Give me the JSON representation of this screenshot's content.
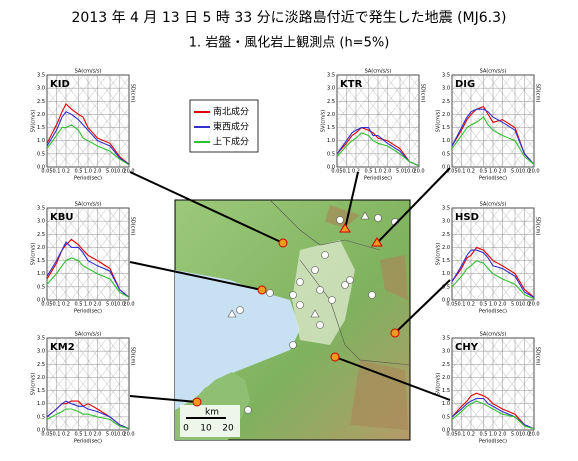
{
  "title": "2013 年 4 月 13 日 5 時 33 分に淡路島付近で発生した地震 (MJ6.3)",
  "subtitle": "1.  岩盤・風化岩上観測点 (h=5%)",
  "map": {
    "scale_unit": "km",
    "scale_labels": [
      "0",
      "10",
      "20"
    ]
  },
  "chart_data": [
    {
      "type": "line",
      "title": "KID",
      "xlabel": "Period(sec)",
      "ylabel": "SV(cm/s)",
      "top_label": "SA(cm/s/s)",
      "right_label": "SD(cm)",
      "log_x": true,
      "xlim": [
        0.05,
        20
      ],
      "xticks": [
        0.05,
        0.1,
        0.2,
        0.5,
        {
          "value": 1,
          "label": "1.0"
        },
        {
          "value": 2,
          "label": "2.0"
        },
        {
          "value": 5,
          "label": "5.0"
        },
        {
          "value": 10,
          "label": "10.0"
        },
        {
          "value": 20,
          "label": "20.0"
        }
      ],
      "ylim": [
        0,
        3.5
      ],
      "yticks": [
        {
          "value": 0,
          "label": "0.0"
        },
        0.5,
        {
          "value": 1,
          "label": "1.0"
        },
        1.5,
        {
          "value": 2,
          "label": "2.0"
        },
        2.5,
        {
          "value": 3,
          "label": "3.0"
        },
        3.5
      ],
      "x": [
        0.05,
        0.1,
        0.15,
        0.2,
        0.3,
        0.5,
        0.7,
        1,
        2,
        5,
        10,
        20
      ],
      "series": [
        {
          "name": "南北成分",
          "color": "#e00000",
          "values": [
            0.9,
            1.6,
            2.1,
            2.4,
            2.2,
            2.0,
            1.9,
            1.5,
            1.1,
            0.9,
            0.4,
            0.1
          ]
        },
        {
          "name": "東西成分",
          "color": "#3030d0",
          "values": [
            0.8,
            1.4,
            1.9,
            2.1,
            2.0,
            1.8,
            1.6,
            1.4,
            1.0,
            0.8,
            0.35,
            0.1
          ]
        },
        {
          "name": "上下成分",
          "color": "#30c030",
          "values": [
            0.7,
            1.2,
            1.5,
            1.5,
            1.6,
            1.4,
            1.1,
            1.0,
            0.8,
            0.6,
            0.3,
            0.08
          ]
        }
      ]
    },
    {
      "type": "line",
      "title": "KTR",
      "xlabel": "Period(sec)",
      "ylabel": "SV(cm/s)",
      "top_label": "SA(cm/s/s)",
      "right_label": "SD(cm)",
      "log_x": true,
      "xlim": [
        0.05,
        20
      ],
      "xticks": [
        0.05,
        0.1,
        0.2,
        0.5,
        {
          "value": 1,
          "label": "1.0"
        },
        {
          "value": 2,
          "label": "2.0"
        },
        {
          "value": 5,
          "label": "5.0"
        },
        {
          "value": 10,
          "label": "10.0"
        },
        {
          "value": 20,
          "label": "20.0"
        }
      ],
      "ylim": [
        0,
        3.5
      ],
      "yticks": [
        {
          "value": 0,
          "label": "0.0"
        },
        0.5,
        {
          "value": 1,
          "label": "1.0"
        },
        1.5,
        {
          "value": 2,
          "label": "2.0"
        },
        2.5,
        {
          "value": 3,
          "label": "3.0"
        },
        3.5
      ],
      "x": [
        0.05,
        0.1,
        0.15,
        0.2,
        0.3,
        0.5,
        0.7,
        1,
        2,
        5,
        10,
        20
      ],
      "series": [
        {
          "color": "#e00000",
          "values": [
            0.5,
            0.9,
            1.2,
            1.3,
            1.5,
            1.4,
            1.3,
            1.1,
            1.0,
            0.7,
            0.2,
            0.05
          ]
        },
        {
          "color": "#3030d0",
          "values": [
            0.5,
            1.0,
            1.3,
            1.4,
            1.5,
            1.5,
            1.2,
            1.2,
            0.9,
            0.6,
            0.2,
            0.05
          ]
        },
        {
          "color": "#30c030",
          "values": [
            0.4,
            0.8,
            1.0,
            1.1,
            1.3,
            1.2,
            1.0,
            0.9,
            0.8,
            0.5,
            0.2,
            0.05
          ]
        }
      ]
    },
    {
      "type": "line",
      "title": "DIG",
      "xlabel": "Period(sec)",
      "ylabel": "SV(cm/s)",
      "top_label": "SA(cm/s/s)",
      "right_label": "SD(cm)",
      "log_x": true,
      "xlim": [
        0.05,
        20
      ],
      "xticks": [
        0.05,
        0.1,
        0.2,
        0.5,
        {
          "value": 1,
          "label": "1.0"
        },
        {
          "value": 2,
          "label": "2.0"
        },
        {
          "value": 5,
          "label": "5.0"
        },
        {
          "value": 10,
          "label": "10.0"
        },
        {
          "value": 20,
          "label": "20.0"
        }
      ],
      "ylim": [
        0,
        3.5
      ],
      "yticks": [
        {
          "value": 0,
          "label": "0.0"
        },
        0.5,
        {
          "value": 1,
          "label": "1.0"
        },
        1.5,
        {
          "value": 2,
          "label": "2.0"
        },
        2.5,
        {
          "value": 3,
          "label": "3.0"
        },
        3.5
      ],
      "x": [
        0.05,
        0.1,
        0.15,
        0.2,
        0.3,
        0.5,
        0.7,
        1,
        2,
        5,
        10,
        20
      ],
      "series": [
        {
          "color": "#e00000",
          "values": [
            0.8,
            1.4,
            1.8,
            2.0,
            2.2,
            2.3,
            2.0,
            1.7,
            1.8,
            1.5,
            0.5,
            0.1
          ]
        },
        {
          "color": "#3030d0",
          "values": [
            0.8,
            1.5,
            1.9,
            2.1,
            2.2,
            2.2,
            2.1,
            1.9,
            1.7,
            1.4,
            0.5,
            0.1
          ]
        },
        {
          "color": "#30c030",
          "values": [
            0.7,
            1.2,
            1.5,
            1.6,
            1.7,
            1.9,
            1.6,
            1.4,
            1.2,
            1.0,
            0.4,
            0.1
          ]
        }
      ]
    },
    {
      "type": "line",
      "title": "KBU",
      "xlabel": "Period(sec)",
      "ylabel": "SV(cm/s)",
      "top_label": "SA(cm/s/s)",
      "right_label": "SD(cm)",
      "log_x": true,
      "xlim": [
        0.05,
        20
      ],
      "xticks": [
        0.05,
        0.1,
        0.2,
        0.5,
        {
          "value": 1,
          "label": "1.0"
        },
        {
          "value": 2,
          "label": "2.0"
        },
        {
          "value": 5,
          "label": "5.0"
        },
        {
          "value": 10,
          "label": "10.0"
        },
        {
          "value": 20,
          "label": "20.0"
        }
      ],
      "ylim": [
        0,
        3.5
      ],
      "yticks": [
        {
          "value": 0,
          "label": "0.0"
        },
        0.5,
        {
          "value": 1,
          "label": "1.0"
        },
        1.5,
        {
          "value": 2,
          "label": "2.0"
        },
        2.5,
        {
          "value": 3,
          "label": "3.0"
        },
        3.5
      ],
      "x": [
        0.05,
        0.1,
        0.15,
        0.2,
        0.3,
        0.5,
        0.7,
        1,
        2,
        5,
        10,
        20
      ],
      "series": [
        {
          "color": "#e00000",
          "values": [
            0.8,
            1.4,
            1.9,
            2.1,
            2.3,
            2.1,
            1.9,
            1.7,
            1.5,
            1.2,
            0.4,
            0.1
          ]
        },
        {
          "color": "#3030d0",
          "values": [
            0.9,
            1.5,
            1.9,
            2.2,
            2.0,
            2.0,
            1.8,
            1.5,
            1.3,
            1.1,
            0.4,
            0.1
          ]
        },
        {
          "color": "#30c030",
          "values": [
            0.6,
            1.0,
            1.3,
            1.5,
            1.6,
            1.5,
            1.3,
            1.2,
            1.0,
            0.8,
            0.3,
            0.1
          ]
        }
      ]
    },
    {
      "type": "line",
      "title": "HSD",
      "xlabel": "Period(sec)",
      "ylabel": "SV(cm/s)",
      "top_label": "SA(cm/s/s)",
      "right_label": "SD(cm)",
      "log_x": true,
      "xlim": [
        0.05,
        20
      ],
      "xticks": [
        0.05,
        0.1,
        0.2,
        0.5,
        {
          "value": 1,
          "label": "1.0"
        },
        {
          "value": 2,
          "label": "2.0"
        },
        {
          "value": 5,
          "label": "5.0"
        },
        {
          "value": 10,
          "label": "10.0"
        },
        {
          "value": 20,
          "label": "20.0"
        }
      ],
      "ylim": [
        0,
        3.5
      ],
      "yticks": [
        {
          "value": 0,
          "label": "0.0"
        },
        0.5,
        {
          "value": 1,
          "label": "1.0"
        },
        1.5,
        {
          "value": 2,
          "label": "2.0"
        },
        2.5,
        {
          "value": 3,
          "label": "3.0"
        },
        3.5
      ],
      "x": [
        0.05,
        0.1,
        0.15,
        0.2,
        0.3,
        0.5,
        0.7,
        1,
        2,
        5,
        10,
        20
      ],
      "series": [
        {
          "color": "#e00000",
          "values": [
            0.7,
            1.2,
            1.6,
            1.7,
            2.0,
            1.9,
            1.7,
            1.5,
            1.3,
            1.0,
            0.4,
            0.1
          ]
        },
        {
          "color": "#3030d0",
          "values": [
            0.7,
            1.3,
            1.7,
            1.9,
            1.9,
            1.8,
            1.6,
            1.3,
            1.2,
            0.9,
            0.3,
            0.1
          ]
        },
        {
          "color": "#30c030",
          "values": [
            0.5,
            0.9,
            1.2,
            1.3,
            1.5,
            1.4,
            1.2,
            1.0,
            0.8,
            0.6,
            0.2,
            0.05
          ]
        }
      ]
    },
    {
      "type": "line",
      "title": "KM2",
      "xlabel": "Period(sec)",
      "ylabel": "SV(cm/s)",
      "top_label": "SA(cm/s/s)",
      "right_label": "SD(cm)",
      "log_x": true,
      "xlim": [
        0.05,
        20
      ],
      "xticks": [
        0.05,
        0.1,
        0.2,
        0.5,
        {
          "value": 1,
          "label": "1.0"
        },
        {
          "value": 2,
          "label": "2.0"
        },
        {
          "value": 5,
          "label": "5.0"
        },
        {
          "value": 10,
          "label": "10.0"
        },
        {
          "value": 20,
          "label": "20.0"
        }
      ],
      "ylim": [
        0,
        3.5
      ],
      "yticks": [
        {
          "value": 0,
          "label": "0.0"
        },
        0.5,
        {
          "value": 1,
          "label": "1.0"
        },
        1.5,
        {
          "value": 2,
          "label": "2.0"
        },
        2.5,
        {
          "value": 3,
          "label": "3.0"
        },
        3.5
      ],
      "x": [
        0.05,
        0.1,
        0.15,
        0.2,
        0.3,
        0.5,
        0.7,
        1,
        2,
        5,
        10,
        20
      ],
      "series": [
        {
          "color": "#e00000",
          "values": [
            0.5,
            0.8,
            1.0,
            1.0,
            1.1,
            1.1,
            0.9,
            1.0,
            0.8,
            0.5,
            0.2,
            0.05
          ]
        },
        {
          "color": "#3030d0",
          "values": [
            0.5,
            0.8,
            1.0,
            1.1,
            1.0,
            0.9,
            0.9,
            0.8,
            0.7,
            0.5,
            0.2,
            0.05
          ]
        },
        {
          "color": "#30c030",
          "values": [
            0.4,
            0.6,
            0.7,
            0.8,
            0.8,
            0.7,
            0.6,
            0.6,
            0.5,
            0.4,
            0.15,
            0.05
          ]
        }
      ]
    },
    {
      "type": "line",
      "title": "CHY",
      "xlabel": "Period(sec)",
      "ylabel": "SV(cm/s)",
      "top_label": "SA(cm/s/s)",
      "right_label": "SD(cm)",
      "log_x": true,
      "xlim": [
        0.05,
        20
      ],
      "xticks": [
        0.05,
        0.1,
        0.2,
        0.5,
        {
          "value": 1,
          "label": "1.0"
        },
        {
          "value": 2,
          "label": "2.0"
        },
        {
          "value": 5,
          "label": "5.0"
        },
        {
          "value": 10,
          "label": "10.0"
        },
        {
          "value": 20,
          "label": "20.0"
        }
      ],
      "ylim": [
        0,
        3.5
      ],
      "yticks": [
        {
          "value": 0,
          "label": "0.0"
        },
        0.5,
        {
          "value": 1,
          "label": "1.0"
        },
        1.5,
        {
          "value": 2,
          "label": "2.0"
        },
        2.5,
        {
          "value": 3,
          "label": "3.0"
        },
        3.5
      ],
      "x": [
        0.05,
        0.1,
        0.15,
        0.2,
        0.3,
        0.5,
        0.7,
        1,
        2,
        5,
        10,
        20
      ],
      "series": [
        {
          "color": "#e00000",
          "values": [
            0.5,
            0.9,
            1.1,
            1.3,
            1.4,
            1.3,
            1.2,
            1.0,
            0.8,
            0.6,
            0.2,
            0.05
          ]
        },
        {
          "color": "#3030d0",
          "values": [
            0.5,
            0.8,
            1.0,
            1.1,
            1.2,
            1.2,
            1.0,
            0.9,
            0.7,
            0.5,
            0.2,
            0.05
          ]
        },
        {
          "color": "#30c030",
          "values": [
            0.4,
            0.7,
            0.9,
            1.0,
            1.1,
            1.0,
            0.9,
            0.8,
            0.6,
            0.5,
            0.15,
            0.05
          ]
        }
      ]
    }
  ]
}
